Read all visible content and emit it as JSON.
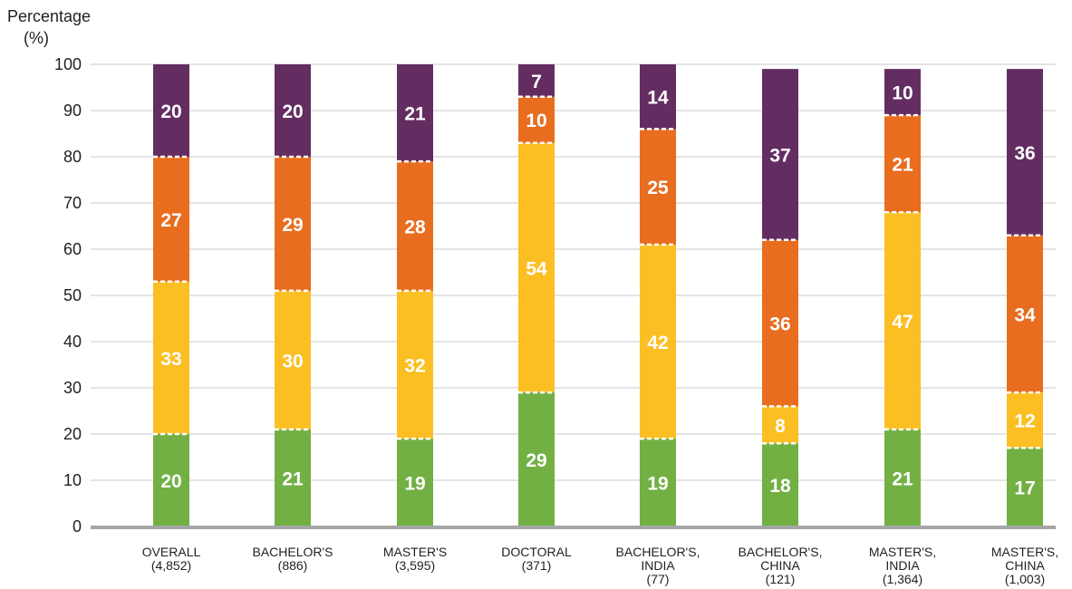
{
  "chart_data": {
    "type": "bar",
    "stacked": true,
    "ylabel": [
      "Percentage",
      "(%)"
    ],
    "ylim": [
      0,
      100
    ],
    "yticks": [
      0,
      10,
      20,
      30,
      40,
      50,
      60,
      70,
      80,
      90,
      100
    ],
    "grid": true,
    "categories": [
      [
        "OVERALL",
        "(4,852)"
      ],
      [
        "BACHELOR'S",
        "(886)"
      ],
      [
        "MASTER'S",
        "(3,595)"
      ],
      [
        "DOCTORAL",
        "(371)"
      ],
      [
        "BACHELOR'S,",
        "INDIA",
        "(77)"
      ],
      [
        "BACHELOR'S,",
        "CHINA",
        "(121)"
      ],
      [
        "MASTER'S,",
        "INDIA",
        "(1,364)"
      ],
      [
        "MASTER'S,",
        "CHINA",
        "(1,003)"
      ]
    ],
    "series": [
      {
        "color": "#72b043",
        "values": [
          20,
          21,
          19,
          29,
          19,
          18,
          21,
          17
        ]
      },
      {
        "color": "#fbbf24",
        "values": [
          33,
          30,
          32,
          54,
          42,
          8,
          47,
          12
        ]
      },
      {
        "color": "#e86d1f",
        "values": [
          27,
          29,
          28,
          10,
          25,
          36,
          21,
          34
        ]
      },
      {
        "color": "#632d62",
        "values": [
          20,
          20,
          21,
          7,
          14,
          37,
          10,
          36
        ]
      }
    ]
  }
}
